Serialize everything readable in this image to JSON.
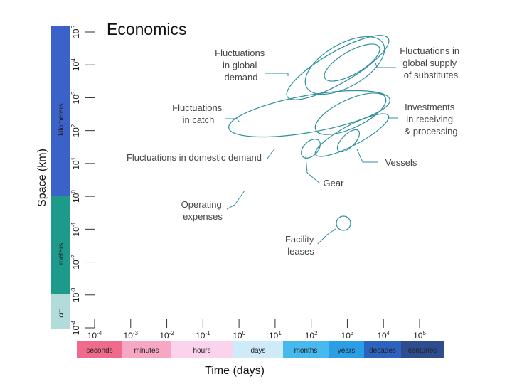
{
  "title": "Economics",
  "axes": {
    "y_title": "Space (km)",
    "x_title": "Time (days)",
    "y_ticks": [
      {
        "base": "10",
        "exp": "5"
      },
      {
        "base": "10",
        "exp": "4"
      },
      {
        "base": "10",
        "exp": "3"
      },
      {
        "base": "10",
        "exp": "2"
      },
      {
        "base": "10",
        "exp": "1"
      },
      {
        "base": "10",
        "exp": "0"
      },
      {
        "base": "10",
        "exp": "-1"
      },
      {
        "base": "10",
        "exp": "-2"
      },
      {
        "base": "10",
        "exp": "-3"
      },
      {
        "base": "10",
        "exp": "-4"
      }
    ],
    "x_ticks": [
      {
        "base": "10",
        "exp": "-4"
      },
      {
        "base": "10",
        "exp": "-3"
      },
      {
        "base": "10",
        "exp": "-2"
      },
      {
        "base": "10",
        "exp": "-1"
      },
      {
        "base": "10",
        "exp": "0"
      },
      {
        "base": "10",
        "exp": "1"
      },
      {
        "base": "10",
        "exp": "2"
      },
      {
        "base": "10",
        "exp": "3"
      },
      {
        "base": "10",
        "exp": "4"
      },
      {
        "base": "10",
        "exp": "5"
      }
    ]
  },
  "space_bands": [
    {
      "label": "kilometers",
      "color": "#3a62c8"
    },
    {
      "label": "meters",
      "color": "#1e9a8c"
    },
    {
      "label": "cm",
      "color": "#b2dcd9"
    }
  ],
  "time_bands": [
    {
      "label": "seconds",
      "color": "#f06a8c"
    },
    {
      "label": "minutes",
      "color": "#f7a6c4"
    },
    {
      "label": "hours",
      "color": "#fbd3ec"
    },
    {
      "label": "days",
      "color": "#cfeaf8"
    },
    {
      "label": "months",
      "color": "#47b9ee"
    },
    {
      "label": "years",
      "color": "#2a9fe6"
    },
    {
      "label": "decades",
      "color": "#2b63bf"
    },
    {
      "label": "centuries",
      "color": "#2d4d8f"
    }
  ],
  "region_labels": [
    [
      "Fluctuations",
      "in global",
      "demand"
    ],
    [
      "Fluctuations in",
      "global supply",
      "of substitutes"
    ],
    [
      "Fluctuations",
      "in catch"
    ],
    [
      "Investments",
      "in receiving",
      "& processing"
    ],
    [
      "Fluctuations in domestic demand"
    ],
    [
      "Vessels"
    ],
    [
      "Gear"
    ],
    [
      "Operating",
      "expenses"
    ],
    [
      "Facility",
      "leases"
    ]
  ],
  "colors": {
    "region_stroke": "#2f8f9d"
  }
}
